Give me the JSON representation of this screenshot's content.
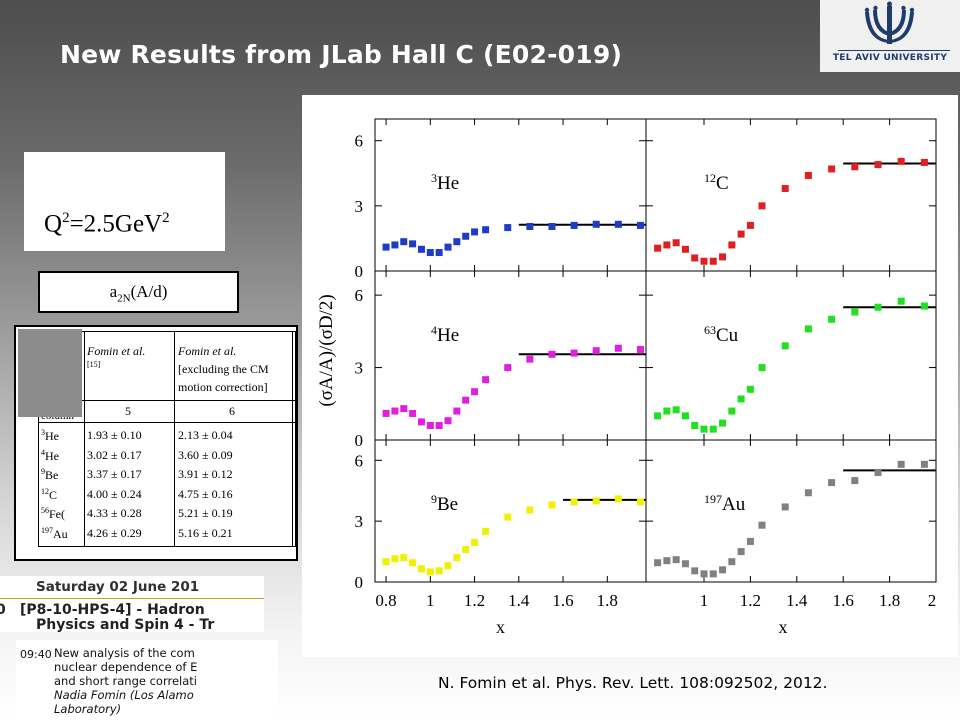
{
  "slide": {
    "title": "New Results from JLab Hall C (E02-019)",
    "logo_text": "TEL AVIV UNIVERSITY",
    "q2_base": "Q",
    "q2_sup1": "2",
    "q2_mid": "=2.5GeV",
    "q2_sup2": "2",
    "a2n_base": "a",
    "a2n_sub": "2N",
    "a2n_rest": "(A/d)",
    "reference": "N. Fomin et al.  Phys. Rev. Lett. 108:092502, 2012."
  },
  "table": {
    "headers": [
      "Fomin et al.",
      "Fomin et al."
    ],
    "header_cite": "[15]",
    "header_note_lines": [
      "[excluding the CM",
      "motion correction]"
    ],
    "row_label_header": "column",
    "column_numbers": [
      "5",
      "6"
    ],
    "rows": [
      {
        "nucleus_sup": "3",
        "nucleus": "He",
        "col5": "1.93 ± 0.10",
        "col6": "2.13 ± 0.04"
      },
      {
        "nucleus_sup": "4",
        "nucleus": "He",
        "col5": "3.02 ± 0.17",
        "col6": "3.60 ± 0.09"
      },
      {
        "nucleus_sup": "9",
        "nucleus": "Be",
        "col5": "3.37 ± 0.17",
        "col6": "3.91 ± 0.12"
      },
      {
        "nucleus_sup": "12",
        "nucleus": "C",
        "col5": "4.00 ± 0.24",
        "col6": "4.75 ± 0.16"
      },
      {
        "nucleus_sup": "56",
        "nucleus": "Fe(",
        "col5": "4.33 ± 0.28",
        "col6": "5.21 ± 0.19"
      },
      {
        "nucleus_sup": "197",
        "nucleus": "Au",
        "col5": "4.26 ± 0.29",
        "col6": "5.16 ± 0.21"
      }
    ]
  },
  "schedule": {
    "date": "Saturday 02 June 201",
    "session_code": "[P8-10-HPS-4] - Hadron",
    "session_line2": "Physics and Spin 4 - Tr",
    "left_digit": "0",
    "time": "09:40",
    "talk_lines": [
      "New analysis of the com",
      "nuclear dependence of E",
      "and short range correlati"
    ],
    "speaker": "Nadia Fomin (Los Alamo",
    "affiliation": "Laboratory)"
  },
  "chart_data": {
    "type": "scatter",
    "ylabel": "(σA/A)/(σD/2)",
    "xlabel": "x",
    "xlim": [
      0.75,
      2.0
    ],
    "ylim": [
      0,
      7
    ],
    "x_ticks_left": [
      "0.8",
      "1",
      "1.2",
      "1.4",
      "1.6",
      "1.8"
    ],
    "x_ticks_right": [
      "1",
      "1.2",
      "1.4",
      "1.6",
      "1.8",
      "2"
    ],
    "y_ticks": [
      "0",
      "3",
      "6"
    ],
    "grid": false,
    "panels": [
      {
        "nucleus_sup": "3",
        "nucleus": "He",
        "color": "#1e3cc8",
        "x": [
          0.8,
          0.84,
          0.88,
          0.92,
          0.96,
          1.0,
          1.04,
          1.08,
          1.12,
          1.16,
          1.2,
          1.25,
          1.35,
          1.45,
          1.55,
          1.65,
          1.75,
          1.85,
          1.95
        ],
        "y": [
          1.1,
          1.2,
          1.35,
          1.25,
          1.0,
          0.85,
          0.85,
          1.1,
          1.35,
          1.6,
          1.8,
          1.9,
          2.0,
          2.05,
          2.05,
          2.1,
          2.15,
          2.15,
          2.1
        ],
        "plateau": {
          "x_start": 1.4,
          "x_end": 2.0,
          "y": 2.13
        }
      },
      {
        "nucleus_sup": "12",
        "nucleus": "C",
        "color": "#e02020",
        "x": [
          0.8,
          0.84,
          0.88,
          0.92,
          0.96,
          1.0,
          1.04,
          1.08,
          1.12,
          1.16,
          1.2,
          1.25,
          1.35,
          1.45,
          1.55,
          1.65,
          1.75,
          1.85,
          1.95
        ],
        "y": [
          1.05,
          1.2,
          1.3,
          1.0,
          0.6,
          0.45,
          0.45,
          0.65,
          1.2,
          1.7,
          2.1,
          3.0,
          3.8,
          4.4,
          4.7,
          4.8,
          4.9,
          5.05,
          5.0
        ],
        "plateau": {
          "x_start": 1.6,
          "x_end": 2.0,
          "y": 4.95
        }
      },
      {
        "nucleus_sup": "4",
        "nucleus": "He",
        "color": "#e020e0",
        "x": [
          0.8,
          0.84,
          0.88,
          0.92,
          0.96,
          1.0,
          1.04,
          1.08,
          1.12,
          1.16,
          1.2,
          1.25,
          1.35,
          1.45,
          1.55,
          1.65,
          1.75,
          1.85,
          1.95
        ],
        "y": [
          1.1,
          1.2,
          1.3,
          1.1,
          0.75,
          0.6,
          0.6,
          0.8,
          1.2,
          1.65,
          2.0,
          2.5,
          3.0,
          3.35,
          3.55,
          3.6,
          3.7,
          3.8,
          3.75
        ],
        "plateau": {
          "x_start": 1.4,
          "x_end": 2.0,
          "y": 3.55
        }
      },
      {
        "nucleus_sup": "63",
        "nucleus": "Cu",
        "color": "#20e020",
        "x": [
          0.8,
          0.84,
          0.88,
          0.92,
          0.96,
          1.0,
          1.04,
          1.08,
          1.12,
          1.16,
          1.2,
          1.25,
          1.35,
          1.45,
          1.55,
          1.65,
          1.75,
          1.85,
          1.95
        ],
        "y": [
          1.0,
          1.2,
          1.25,
          1.0,
          0.6,
          0.45,
          0.45,
          0.7,
          1.2,
          1.7,
          2.1,
          3.0,
          3.9,
          4.6,
          5.0,
          5.3,
          5.5,
          5.75,
          5.55
        ],
        "plateau": {
          "x_start": 1.6,
          "x_end": 2.0,
          "y": 5.5
        }
      },
      {
        "nucleus_sup": "9",
        "nucleus": "Be",
        "color": "#f0f000",
        "x": [
          0.8,
          0.84,
          0.88,
          0.92,
          0.96,
          1.0,
          1.04,
          1.08,
          1.12,
          1.16,
          1.2,
          1.25,
          1.35,
          1.45,
          1.55,
          1.65,
          1.75,
          1.85,
          1.95
        ],
        "y": [
          1.0,
          1.15,
          1.2,
          0.95,
          0.65,
          0.5,
          0.55,
          0.8,
          1.2,
          1.6,
          1.95,
          2.5,
          3.2,
          3.55,
          3.8,
          3.95,
          4.0,
          4.1,
          3.95
        ],
        "plateau": {
          "x_start": 1.6,
          "x_end": 2.0,
          "y": 4.05
        }
      },
      {
        "nucleus_sup": "197",
        "nucleus": "Au",
        "color": "#808080",
        "x": [
          0.8,
          0.84,
          0.88,
          0.92,
          0.96,
          1.0,
          1.04,
          1.08,
          1.12,
          1.16,
          1.2,
          1.25,
          1.35,
          1.45,
          1.55,
          1.65,
          1.75,
          1.85,
          1.95
        ],
        "y": [
          0.95,
          1.05,
          1.1,
          0.9,
          0.55,
          0.4,
          0.4,
          0.6,
          1.0,
          1.5,
          2.0,
          2.8,
          3.7,
          4.4,
          4.9,
          5.0,
          5.4,
          5.8,
          5.8
        ],
        "plateau": {
          "x_start": 1.6,
          "x_end": 2.0,
          "y": 5.5
        }
      }
    ]
  }
}
